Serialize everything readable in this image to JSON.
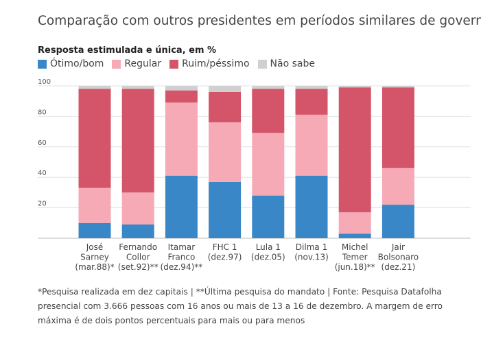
{
  "title": "Comparação com outros presidentes em períodos similares de governo",
  "subtitle": "Resposta estimulada e única, em %",
  "legend": [
    {
      "label": "Ótimo/bom",
      "color": "#3a87c8"
    },
    {
      "label": "Regular",
      "color": "#f5aab6"
    },
    {
      "label": "Ruim/péssimo",
      "color": "#d4556a"
    },
    {
      "label": "Não sabe",
      "color": "#d0d0d0"
    }
  ],
  "footnote": "*Pesquisa realizada em dez capitais | **Última pesquisa do mandato | Fonte: Pesquisa Datafolha presencial com 3.666 pessoas com 16 anos ou mais de 13 a 16 de dezembro. A margem de erro máxima é de dois pontos percentuais para mais ou para menos",
  "chart_data": {
    "type": "bar",
    "stacked": true,
    "ylim": [
      0,
      100
    ],
    "yticks": [
      20,
      40,
      60,
      80,
      100
    ],
    "grid": true,
    "categories": [
      [
        "José",
        "Sarney",
        "(mar.88)*"
      ],
      [
        "Fernando",
        "Collor",
        "(set.92)**"
      ],
      [
        "Itamar",
        "Franco",
        "(dez.94)**"
      ],
      [
        "FHC 1",
        "(dez.97)"
      ],
      [
        "Lula 1",
        "(dez.05)"
      ],
      [
        "Dilma 1",
        "(nov.13)"
      ],
      [
        "Michel",
        "Temer",
        "(jun.18)**"
      ],
      [
        "Jair",
        "Bolsonaro",
        "(dez.21)"
      ]
    ],
    "series": [
      {
        "name": "Ótimo/bom",
        "color": "#3a87c8",
        "values": [
          10,
          9,
          41,
          37,
          28,
          41,
          3,
          22
        ]
      },
      {
        "name": "Regular",
        "color": "#f5aab6",
        "values": [
          23,
          21,
          48,
          39,
          41,
          40,
          14,
          24
        ]
      },
      {
        "name": "Ruim/péssimo",
        "color": "#d4556a",
        "values": [
          65,
          68,
          8,
          20,
          29,
          17,
          82,
          53
        ]
      },
      {
        "name": "Não sabe",
        "color": "#d0d0d0",
        "values": [
          2,
          2,
          3,
          4,
          2,
          2,
          1,
          1
        ]
      }
    ]
  }
}
